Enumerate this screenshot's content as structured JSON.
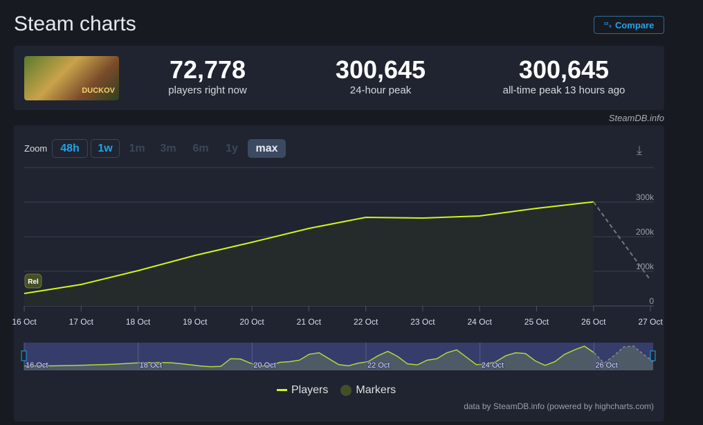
{
  "header": {
    "title": "Steam charts",
    "compare_label": "Compare",
    "compare_icon": "sort-numbers-icon"
  },
  "game": {
    "thumbnail_text": "DUCKOV"
  },
  "stats": [
    {
      "value": "72,778",
      "label": "players right now"
    },
    {
      "value": "300,645",
      "label": "24-hour peak"
    },
    {
      "value": "300,645",
      "label": "all-time peak 13 hours ago"
    }
  ],
  "credit": "SteamDB.info",
  "zoom": {
    "label": "Zoom",
    "buttons": [
      "48h",
      "1w",
      "1m",
      "3m",
      "6m",
      "1y",
      "max"
    ],
    "selected": "max"
  },
  "footer": "data by SteamDB.info (powered by highcharts.com)",
  "colors": {
    "series": "#d4f51b",
    "accent": "#1fa3ea",
    "marker": "#454f26"
  },
  "chart_data": {
    "type": "line",
    "x": [
      "16 Oct",
      "17 Oct",
      "18 Oct",
      "19 Oct",
      "20 Oct",
      "21 Oct",
      "22 Oct",
      "23 Oct",
      "24 Oct",
      "25 Oct",
      "26 Oct",
      "27 Oct"
    ],
    "series": [
      {
        "name": "Players",
        "values": [
          36000,
          62000,
          102000,
          146000,
          184000,
          224000,
          256000,
          254000,
          260000,
          282000,
          300645,
          80000
        ],
        "last_segment": "dashed"
      }
    ],
    "ylim": [
      0,
      330000
    ],
    "yticks": [
      "0",
      "100k",
      "200k",
      "300k"
    ],
    "grid": true,
    "markers": [
      {
        "x": "16 Oct",
        "label": "Rel"
      }
    ],
    "legend": [
      "Players",
      "Markers"
    ],
    "legend_position": "bottom",
    "navigator": {
      "x_labels": [
        "16 Oct",
        "18 Oct",
        "20 Oct",
        "22 Oct",
        "24 Oct",
        "26 Oct"
      ],
      "values": [
        10,
        10,
        11,
        12,
        13,
        14,
        16,
        18,
        20,
        22,
        26,
        30,
        33,
        34,
        34,
        32,
        26,
        18,
        10,
        6,
        8,
        60,
        58,
        30,
        10,
        12,
        35,
        40,
        50,
        90,
        100,
        60,
        20,
        12,
        30,
        40,
        80,
        110,
        75,
        25,
        18,
        50,
        60,
        100,
        120,
        70,
        20,
        22,
        40,
        80,
        100,
        95,
        45,
        15,
        40,
        90,
        120,
        145,
        100,
        30,
        80,
        140,
        145,
        90,
        40
      ]
    }
  }
}
